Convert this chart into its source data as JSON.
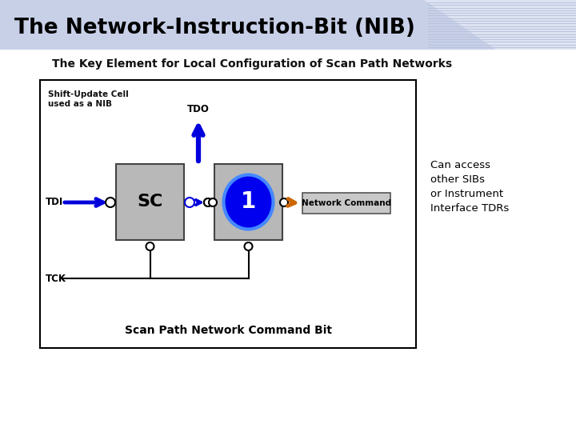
{
  "title": "The Network-Instruction-Bit (NIB)",
  "subtitle": "The Key Element for Local Configuration of Scan Path Networks",
  "title_bg_color": "#c8d0e8",
  "title_text_color": "#000000",
  "bg_color": "#ffffff",
  "header_stripe_color": "#c8d0e8",
  "stripe_light_color": "#dde3f2",
  "diagram_box_border": "#000000",
  "sc_box_color": "#b8b8b8",
  "nib_box_color": "#b8b8b8",
  "nib_circle_color": "#0000ee",
  "nib_circle_border": "#4488ff",
  "nc_box_color": "#c8c8c8",
  "tdi_arrow_color": "#0000dd",
  "tdo_arrow_color": "#0000dd",
  "nc_arrow_color": "#cc6600",
  "shift_update_label": "Shift-Update Cell\nused as a NIB",
  "tdi_label": "TDI",
  "tdo_label": "TDO",
  "tck_label": "TCK",
  "sc_label": "SC",
  "nib_label": "1",
  "nc_label": "Network Command",
  "scan_path_label": "Scan Path Network Command Bit",
  "can_access_text": "Can access\nother SIBs\nor Instrument\nInterface TDRs"
}
